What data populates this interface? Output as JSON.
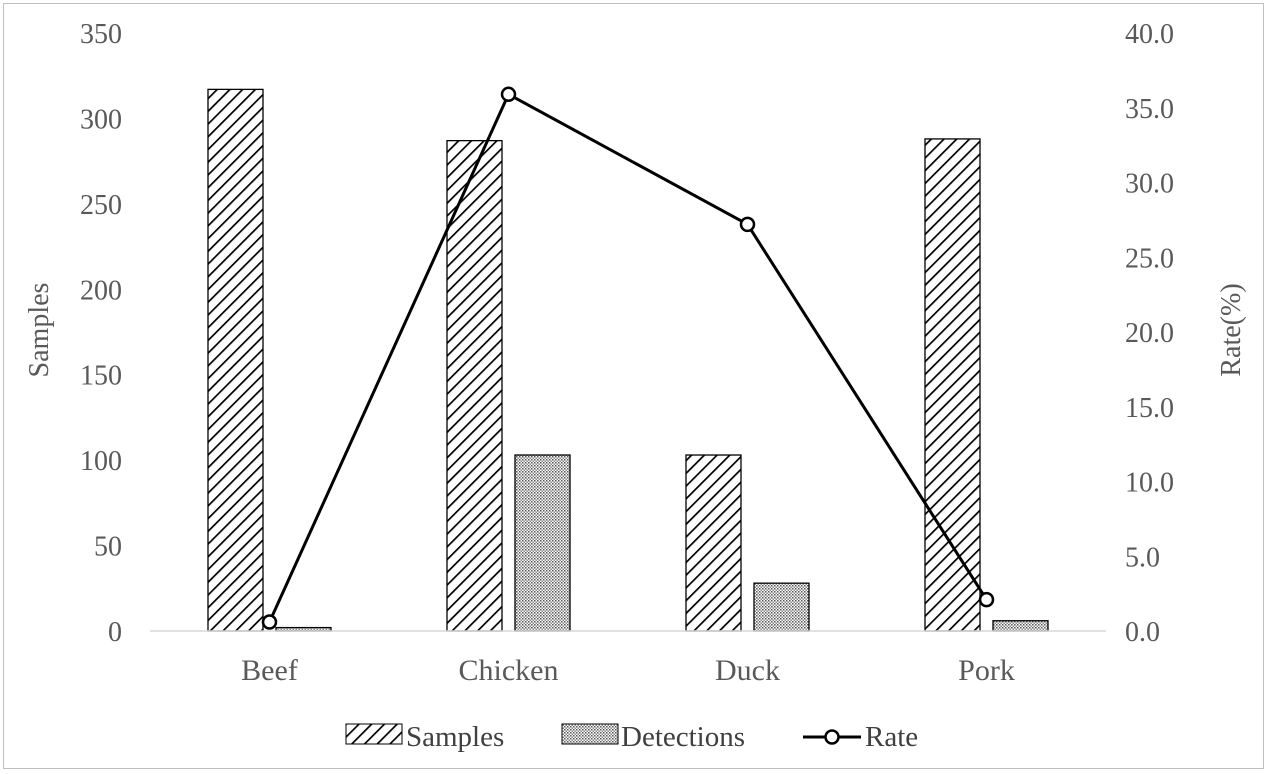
{
  "chart_data": {
    "type": "bar",
    "categories": [
      "Beef",
      "Chicken",
      "Duck",
      "Pork"
    ],
    "series": [
      {
        "name": "Samples",
        "type": "bar",
        "axis": "left",
        "pattern": "diagonal-hatch",
        "values": [
          317,
          287,
          103,
          288
        ]
      },
      {
        "name": "Detections",
        "type": "bar",
        "axis": "left",
        "pattern": "dotted",
        "values": [
          2,
          103,
          28,
          6
        ]
      },
      {
        "name": "Rate",
        "type": "line",
        "axis": "right",
        "marker": "circle",
        "values": [
          0.6,
          35.9,
          27.2,
          2.1
        ]
      }
    ],
    "ylabel": "Samples",
    "y2label": "Rate(%)",
    "ylim": [
      0,
      350
    ],
    "y2lim": [
      0,
      40
    ],
    "yticks": [
      "0",
      "50",
      "100",
      "150",
      "200",
      "250",
      "300",
      "350"
    ],
    "y2ticks": [
      "0.0",
      "5.0",
      "10.0",
      "15.0",
      "20.0",
      "25.0",
      "30.0",
      "35.0",
      "40.0"
    ],
    "legend": "bottom",
    "grid": false,
    "colors": {
      "line": "#000000",
      "axis_text": "#595959",
      "axis_line": "#d9d9d9"
    }
  }
}
